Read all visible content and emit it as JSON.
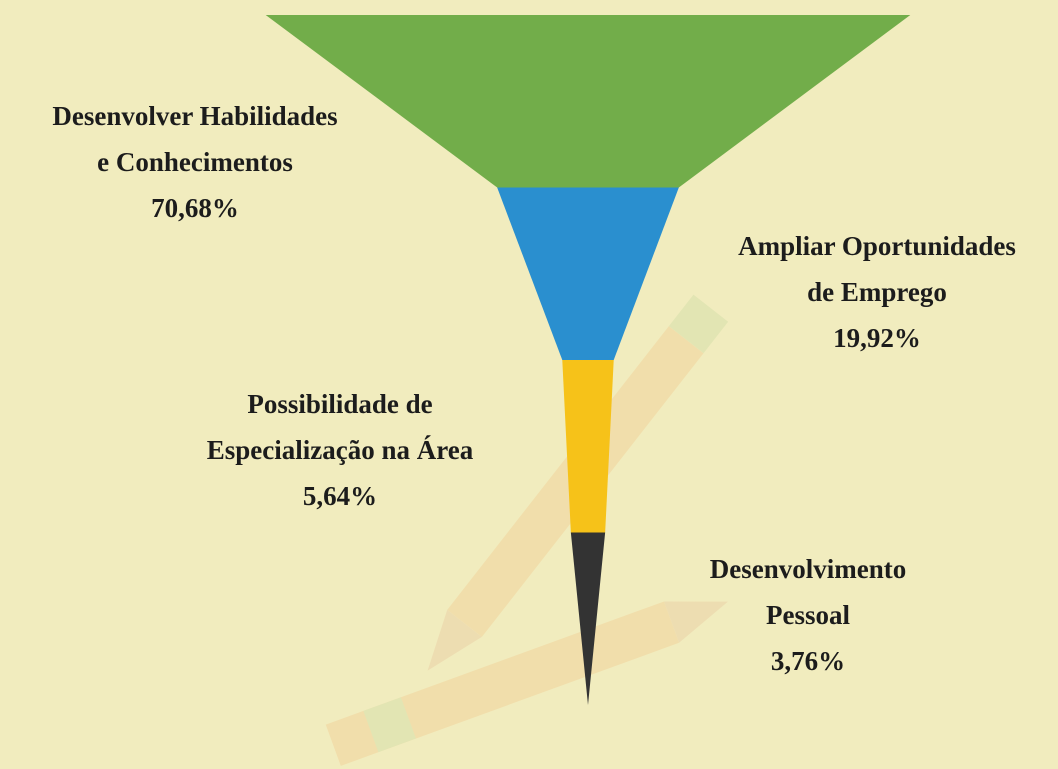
{
  "chart_data": {
    "type": "funnel",
    "categories": [
      [
        "Desenvolver Habilidades",
        "e Conhecimentos"
      ],
      [
        "Ampliar Oportunidades",
        "de Emprego"
      ],
      [
        "Possibilidade de",
        "Especialização na Área"
      ],
      [
        "Desenvolvimento",
        "Pessoal"
      ]
    ],
    "values": [
      70.68,
      19.92,
      5.64,
      3.76
    ],
    "value_labels": [
      "70,68%",
      "19,92%",
      "5,64%",
      "3,76%"
    ],
    "colors": [
      "#72ad4a",
      "#2a8fcf",
      "#f6c219",
      "#333333"
    ]
  }
}
